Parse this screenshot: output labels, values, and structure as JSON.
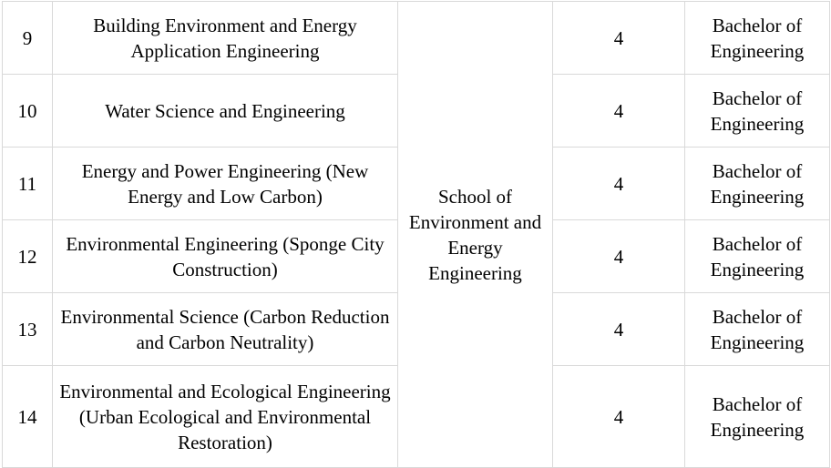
{
  "table": {
    "school": "School of Environment and Energy Engineering",
    "rows": [
      {
        "no": "9",
        "major": "Building Environment and Energy Application Engineering",
        "years": "4",
        "degree": "Bachelor of Engineering"
      },
      {
        "no": "10",
        "major": "Water Science and Engineering",
        "years": "4",
        "degree": "Bachelor of Engineering"
      },
      {
        "no": "11",
        "major": "Energy and Power Engineering (New Energy and Low Carbon)",
        "years": "4",
        "degree": "Bachelor of Engineering"
      },
      {
        "no": "12",
        "major": "Environmental Engineering (Sponge City Construction)",
        "years": "4",
        "degree": "Bachelor of Engineering"
      },
      {
        "no": "13",
        "major": "Environmental Science (Carbon Reduction and Carbon Neutrality)",
        "years": "4",
        "degree": "Bachelor of Engineering"
      },
      {
        "no": "14",
        "major": "Environmental and Ecological Engineering (Urban Ecological and Environmental Restoration)",
        "years": "4",
        "degree": "Bachelor of Engineering"
      }
    ]
  }
}
